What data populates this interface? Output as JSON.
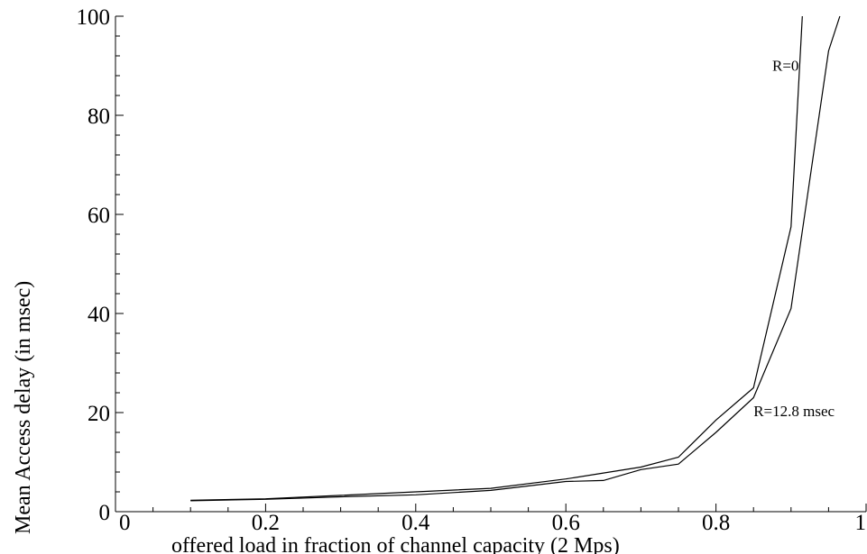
{
  "chart_data": {
    "type": "line",
    "title": "",
    "xlabel": "offered load in fraction of channel capacity (2 Mps)",
    "ylabel": "Mean Access delay (in msec)",
    "xlim": [
      0,
      1
    ],
    "ylim": [
      0,
      100
    ],
    "x_ticks": [
      "0",
      "0.2",
      "0.4",
      "0.6",
      "0.8",
      "1"
    ],
    "y_ticks": [
      "0",
      "20",
      "40",
      "60",
      "80",
      "100"
    ],
    "grid": false,
    "legend": "none",
    "series": [
      {
        "name": "R=0",
        "x": [
          0.1,
          0.2,
          0.3,
          0.4,
          0.5,
          0.6,
          0.65,
          0.7,
          0.75,
          0.8,
          0.85,
          0.9,
          0.915
        ],
        "y": [
          2.3,
          2.6,
          3.3,
          4.0,
          4.7,
          6.6,
          7.8,
          9.0,
          11.0,
          18.5,
          25.0,
          57.5,
          100
        ]
      },
      {
        "name": "R=12.8 msec",
        "x": [
          0.1,
          0.2,
          0.3,
          0.4,
          0.5,
          0.6,
          0.65,
          0.7,
          0.75,
          0.8,
          0.85,
          0.9,
          0.95,
          0.965
        ],
        "y": [
          2.2,
          2.5,
          3.0,
          3.4,
          4.3,
          6.1,
          6.3,
          8.5,
          9.6,
          16.0,
          23.0,
          41.0,
          93.0,
          100
        ]
      }
    ],
    "annotations": [
      {
        "text": "R=0",
        "x": 0.875,
        "y": 89
      },
      {
        "text": "R=12.8 msec",
        "x": 0.85,
        "y": 19.3
      }
    ]
  }
}
